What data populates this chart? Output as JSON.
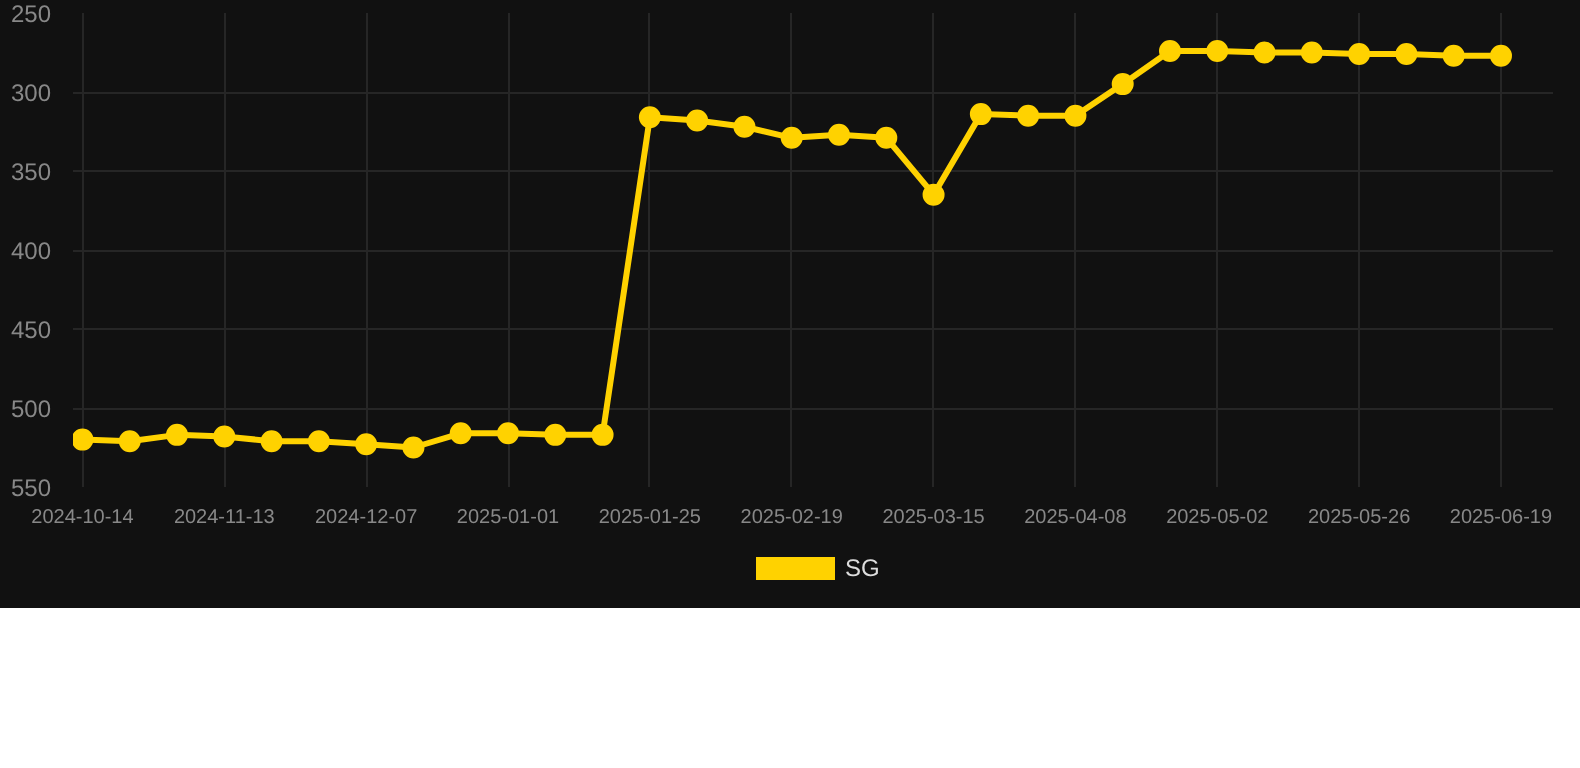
{
  "chart_data": {
    "type": "line",
    "categories": [
      "2024-10-14",
      null,
      null,
      "2024-11-13",
      null,
      null,
      "2024-12-07",
      null,
      null,
      "2025-01-01",
      null,
      null,
      "2025-01-25",
      null,
      null,
      "2025-02-19",
      null,
      null,
      "2025-03-15",
      null,
      null,
      "2025-04-08",
      null,
      null,
      "2025-05-02",
      null,
      null,
      "2025-05-26",
      null,
      null,
      "2025-06-19"
    ],
    "series": [
      {
        "name": "SG",
        "color": "#ffd200",
        "values": [
          520,
          521,
          517,
          518,
          521,
          521,
          523,
          525,
          516,
          516,
          517,
          517,
          316,
          318,
          322,
          329,
          327,
          329,
          365,
          314,
          315,
          315,
          295,
          274,
          274,
          275,
          275,
          276,
          276,
          277,
          277
        ]
      }
    ],
    "ylim": [
      550,
      250
    ],
    "yticks": [
      250,
      300,
      350,
      400,
      450,
      500,
      550
    ],
    "grid": true,
    "legend": "bottom",
    "marker": "circle",
    "line_style": "solid"
  }
}
